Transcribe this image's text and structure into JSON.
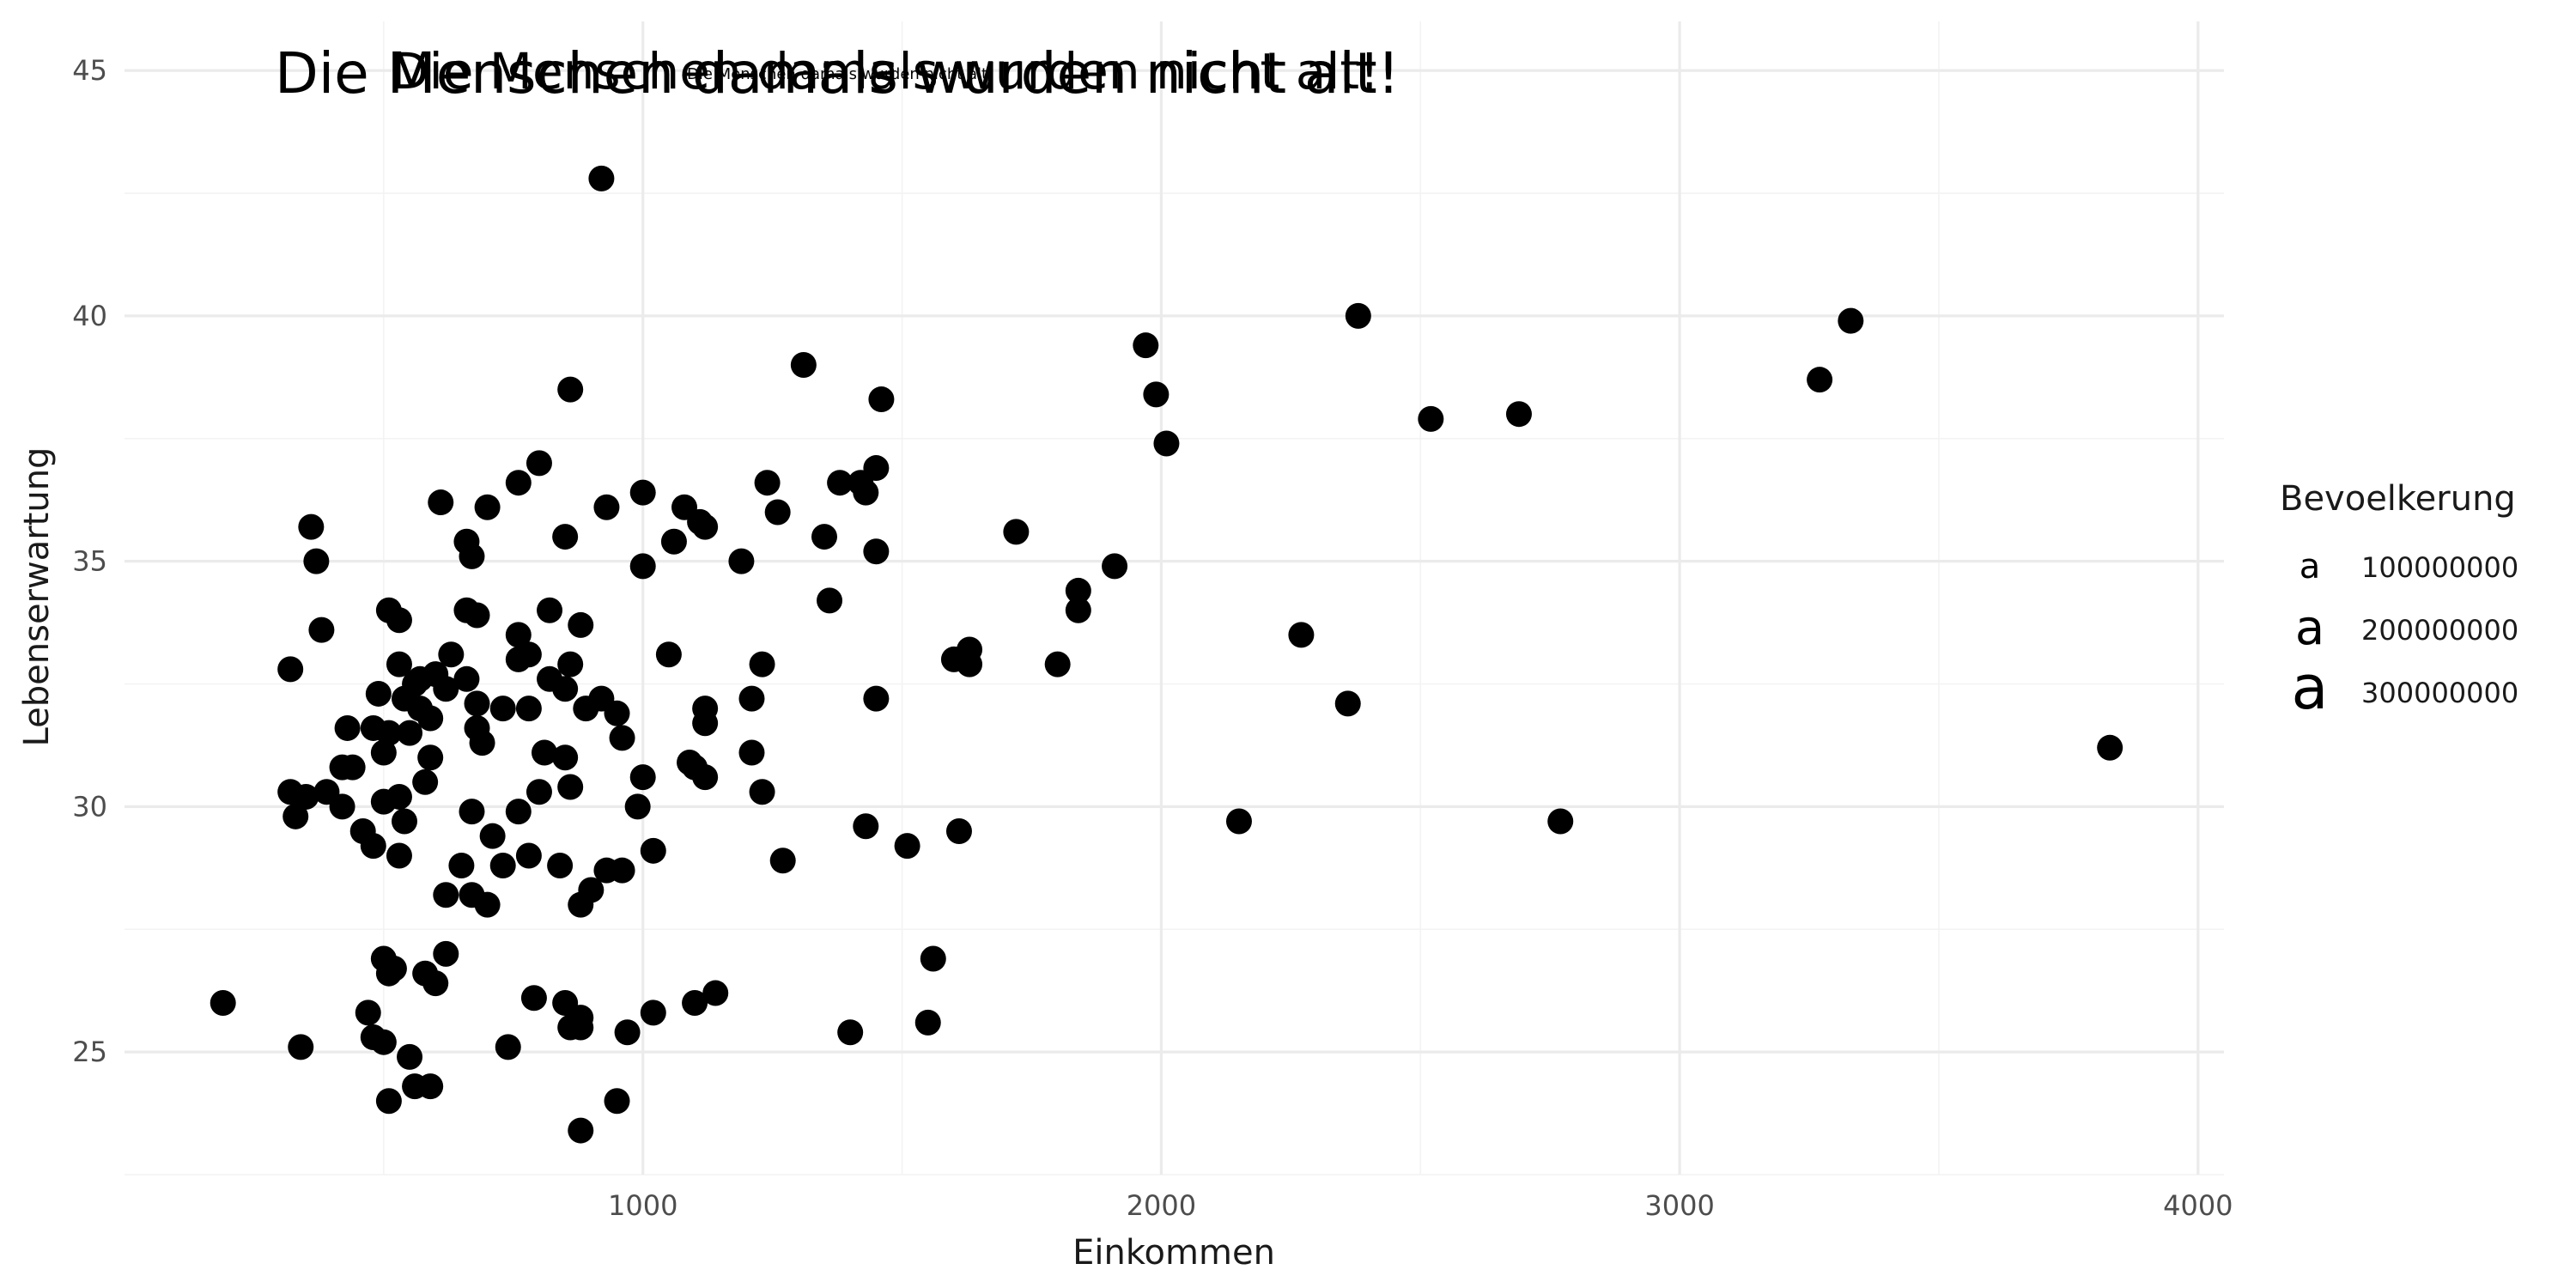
{
  "chart_data": {
    "type": "scatter",
    "title_overlay": [
      {
        "text": "Die Menschen damals wurden nicht alt!"
      },
      {
        "text": "Die Menschen damals wurden nicht alt!"
      },
      {
        "text": "Die Menschen damals wurden nicht alt!"
      }
    ],
    "xlabel": "Einkommen",
    "ylabel": "Lebenserwartung",
    "xlim": [
      0,
      4050
    ],
    "ylim": [
      22.5,
      46
    ],
    "x_ticks": [
      1000,
      2000,
      3000,
      4000
    ],
    "y_ticks": [
      25,
      30,
      35,
      40,
      45
    ],
    "grid": true,
    "legend": {
      "title": "Bevoelkerung",
      "position": "right",
      "entries": [
        {
          "label": "100000000",
          "glyph": "a"
        },
        {
          "label": "200000000",
          "glyph": "a"
        },
        {
          "label": "300000000",
          "glyph": "a"
        }
      ]
    },
    "point_color": "#000000",
    "points": [
      [
        920,
        42.8
      ],
      [
        2380,
        40.0
      ],
      [
        3330,
        39.9
      ],
      [
        1970,
        39.4
      ],
      [
        3270,
        38.7
      ],
      [
        1310,
        39.0
      ],
      [
        860,
        38.5
      ],
      [
        1990,
        38.4
      ],
      [
        1460,
        38.3
      ],
      [
        2520,
        37.9
      ],
      [
        2690,
        38.0
      ],
      [
        2010,
        37.4
      ],
      [
        800,
        37.0
      ],
      [
        1450,
        36.9
      ],
      [
        760,
        36.6
      ],
      [
        1380,
        36.6
      ],
      [
        1240,
        36.6
      ],
      [
        1420,
        36.6
      ],
      [
        1430,
        36.4
      ],
      [
        1000,
        36.4
      ],
      [
        610,
        36.2
      ],
      [
        700,
        36.1
      ],
      [
        930,
        36.1
      ],
      [
        1080,
        36.1
      ],
      [
        1110,
        35.8
      ],
      [
        1260,
        36.0
      ],
      [
        1120,
        35.7
      ],
      [
        1060,
        35.4
      ],
      [
        360,
        35.7
      ],
      [
        660,
        35.4
      ],
      [
        1720,
        35.6
      ],
      [
        850,
        35.5
      ],
      [
        1350,
        35.5
      ],
      [
        370,
        35.0
      ],
      [
        670,
        35.1
      ],
      [
        1000,
        34.9
      ],
      [
        1190,
        35.0
      ],
      [
        1450,
        35.2
      ],
      [
        1910,
        34.9
      ],
      [
        1840,
        34.4
      ],
      [
        1360,
        34.2
      ],
      [
        510,
        34.0
      ],
      [
        530,
        33.8
      ],
      [
        660,
        34.0
      ],
      [
        680,
        33.9
      ],
      [
        820,
        34.0
      ],
      [
        880,
        33.7
      ],
      [
        1840,
        34.0
      ],
      [
        380,
        33.6
      ],
      [
        760,
        33.5
      ],
      [
        2270,
        33.5
      ],
      [
        630,
        33.1
      ],
      [
        780,
        33.1
      ],
      [
        1050,
        33.1
      ],
      [
        1600,
        33.0
      ],
      [
        1630,
        33.2
      ],
      [
        1630,
        32.9
      ],
      [
        1230,
        32.9
      ],
      [
        1800,
        32.9
      ],
      [
        320,
        32.8
      ],
      [
        530,
        32.9
      ],
      [
        570,
        32.6
      ],
      [
        600,
        32.7
      ],
      [
        660,
        32.6
      ],
      [
        760,
        33.0
      ],
      [
        860,
        32.9
      ],
      [
        820,
        32.6
      ],
      [
        850,
        32.4
      ],
      [
        560,
        32.5
      ],
      [
        490,
        32.3
      ],
      [
        540,
        32.2
      ],
      [
        570,
        32.0
      ],
      [
        620,
        32.4
      ],
      [
        680,
        32.1
      ],
      [
        730,
        32.0
      ],
      [
        780,
        32.0
      ],
      [
        890,
        32.0
      ],
      [
        920,
        32.2
      ],
      [
        950,
        31.9
      ],
      [
        1120,
        32.0
      ],
      [
        1450,
        32.2
      ],
      [
        1210,
        32.2
      ],
      [
        2360,
        32.1
      ],
      [
        430,
        31.6
      ],
      [
        480,
        31.6
      ],
      [
        510,
        31.5
      ],
      [
        550,
        31.5
      ],
      [
        590,
        31.8
      ],
      [
        680,
        31.6
      ],
      [
        810,
        31.1
      ],
      [
        850,
        31.0
      ],
      [
        960,
        31.4
      ],
      [
        1120,
        31.7
      ],
      [
        1210,
        31.1
      ],
      [
        420,
        30.8
      ],
      [
        440,
        30.8
      ],
      [
        500,
        31.1
      ],
      [
        590,
        31.0
      ],
      [
        690,
        31.3
      ],
      [
        390,
        30.3
      ],
      [
        420,
        30.0
      ],
      [
        500,
        30.1
      ],
      [
        530,
        30.2
      ],
      [
        580,
        30.5
      ],
      [
        670,
        29.9
      ],
      [
        760,
        29.9
      ],
      [
        800,
        30.3
      ],
      [
        860,
        30.4
      ],
      [
        990,
        30.0
      ],
      [
        1000,
        30.6
      ],
      [
        1090,
        30.9
      ],
      [
        1100,
        30.8
      ],
      [
        1120,
        30.6
      ],
      [
        1230,
        30.3
      ],
      [
        3830,
        31.2
      ],
      [
        320,
        30.3
      ],
      [
        350,
        30.2
      ],
      [
        330,
        29.8
      ],
      [
        460,
        29.5
      ],
      [
        480,
        29.2
      ],
      [
        530,
        29.0
      ],
      [
        540,
        29.7
      ],
      [
        710,
        29.4
      ],
      [
        650,
        28.8
      ],
      [
        730,
        28.8
      ],
      [
        780,
        29.0
      ],
      [
        840,
        28.8
      ],
      [
        880,
        28.0
      ],
      [
        930,
        28.7
      ],
      [
        960,
        28.7
      ],
      [
        1020,
        29.1
      ],
      [
        1270,
        28.9
      ],
      [
        1430,
        29.6
      ],
      [
        1510,
        29.2
      ],
      [
        1610,
        29.5
      ],
      [
        2150,
        29.7
      ],
      [
        2770,
        29.7
      ],
      [
        620,
        28.2
      ],
      [
        670,
        28.2
      ],
      [
        700,
        28.0
      ],
      [
        900,
        28.3
      ],
      [
        500,
        26.9
      ],
      [
        510,
        26.6
      ],
      [
        520,
        26.7
      ],
      [
        580,
        26.6
      ],
      [
        600,
        26.4
      ],
      [
        620,
        27.0
      ],
      [
        790,
        26.1
      ],
      [
        850,
        26.0
      ],
      [
        880,
        25.7
      ],
      [
        1020,
        25.8
      ],
      [
        1100,
        26.0
      ],
      [
        1140,
        26.2
      ],
      [
        1560,
        26.9
      ],
      [
        190,
        26.0
      ],
      [
        340,
        25.1
      ],
      [
        470,
        25.8
      ],
      [
        480,
        25.3
      ],
      [
        500,
        25.2
      ],
      [
        550,
        24.9
      ],
      [
        560,
        24.3
      ],
      [
        590,
        24.3
      ],
      [
        510,
        24.0
      ],
      [
        740,
        25.1
      ],
      [
        860,
        25.5
      ],
      [
        880,
        25.5
      ],
      [
        970,
        25.4
      ],
      [
        1400,
        25.4
      ],
      [
        1550,
        25.6
      ],
      [
        950,
        24.0
      ],
      [
        880,
        23.4
      ]
    ]
  }
}
